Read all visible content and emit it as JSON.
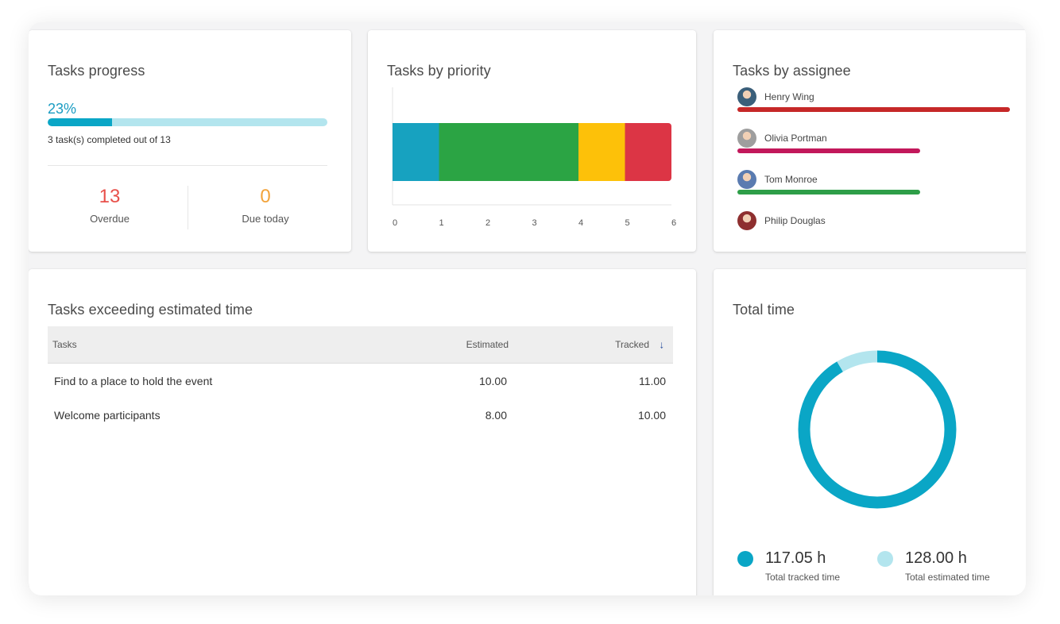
{
  "progress": {
    "title": "Tasks progress",
    "percent_label": "23%",
    "percent": 0.23,
    "caption": "3 task(s) completed out of 13",
    "overdue_count": "13",
    "overdue_label": "Overdue",
    "due_today_count": "0",
    "due_today_label": "Due today",
    "colors": {
      "overdue": "#e8504a",
      "due_today": "#f2a33a",
      "accent": "#1a9cc2"
    }
  },
  "priority": {
    "title": "Tasks by priority",
    "chart_data": {
      "type": "bar",
      "orientation": "horizontal-stacked",
      "categories": [
        ""
      ],
      "series": [
        {
          "values": [
            1
          ],
          "color": "#17a2c0"
        },
        {
          "values": [
            3
          ],
          "color": "#2ba444"
        },
        {
          "values": [
            1
          ],
          "color": "#fdc109"
        },
        {
          "values": [
            1
          ],
          "color": "#dc3545"
        }
      ],
      "xlim": [
        0,
        6
      ],
      "x_ticks": [
        "0",
        "1",
        "2",
        "3",
        "4",
        "5",
        "6"
      ]
    }
  },
  "assignees": {
    "title": "Tasks by assignee",
    "items": [
      {
        "name": "Henry Wing",
        "value": 1.0,
        "color": "#c62828",
        "avatar_color": "#3b5f7a"
      },
      {
        "name": "Olivia Portman",
        "value": 0.67,
        "color": "#c2185b",
        "avatar_color": "#9e9e9e"
      },
      {
        "name": "Tom Monroe",
        "value": 0.67,
        "color": "#2e9e48",
        "avatar_color": "#5a7bb0"
      },
      {
        "name": "Philip Douglas",
        "value": 0,
        "color": "#e57373",
        "avatar_color": "#8e2f2f"
      }
    ]
  },
  "exceeding": {
    "title": "Tasks exceeding estimated time",
    "headers": {
      "tasks": "Tasks",
      "estimated": "Estimated",
      "tracked": "Tracked",
      "sort_icon": "↓"
    },
    "rows": [
      {
        "task": "Find to a place to hold the event",
        "estimated": "10.00",
        "tracked": "11.00"
      },
      {
        "task": "Welcome participants",
        "estimated": "8.00",
        "tracked": "10.00"
      }
    ]
  },
  "total_time": {
    "title": "Total time",
    "chart_data": {
      "type": "pie",
      "style": "donut",
      "series": [
        {
          "values": [
            117.05
          ],
          "color": "#0aa6c6"
        },
        {
          "values": [
            10.95
          ],
          "color": "#b3e5ee"
        }
      ]
    },
    "legend": [
      {
        "value": "117.05 h",
        "label": "Total tracked time",
        "color": "#0aa6c6"
      },
      {
        "value": "128.00 h",
        "label": "Total estimated time",
        "color": "#b3e5ee"
      }
    ]
  }
}
